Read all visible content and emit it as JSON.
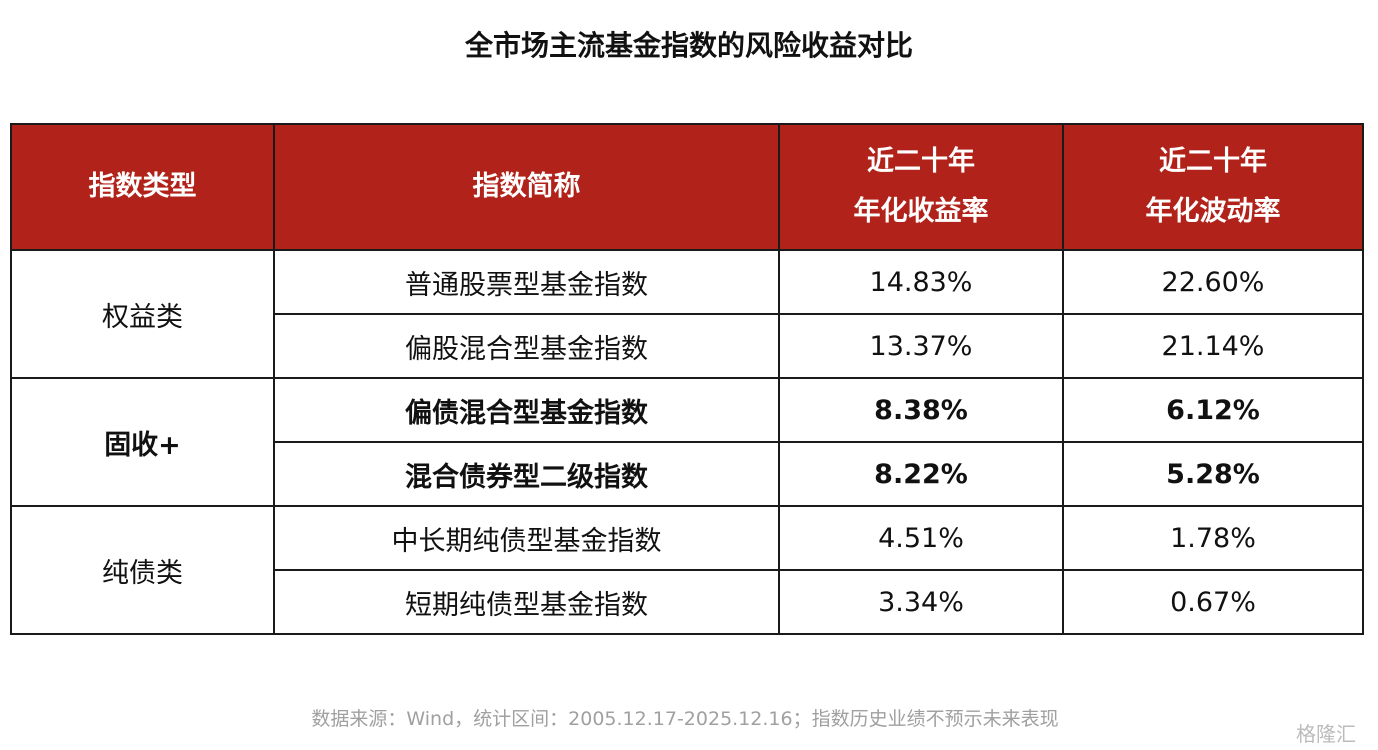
{
  "title": "全市场主流基金指数的风险收益对比",
  "table": {
    "header": [
      [
        "指数类型"
      ],
      [
        "指数简称"
      ],
      [
        "近二十年",
        "年化收益率"
      ],
      [
        "近二十年",
        "年化波动率"
      ]
    ],
    "groups": [
      {
        "label": "权益类",
        "rows": [
          [
            "普通股票型基金指数",
            "14.83%",
            "22.60%"
          ],
          [
            "偏股混合型基金指数",
            "13.37%",
            "21.14%"
          ]
        ]
      },
      {
        "label": "固收+",
        "rows": [
          [
            "偏债混合型基金指数",
            "8.38%",
            "6.12%"
          ],
          [
            "混合债券型二级指数",
            "8.22%",
            "5.28%"
          ]
        ]
      },
      {
        "label": "纯债类",
        "rows": [
          [
            "中长期纯债型基金指数",
            "4.51%",
            "1.78%"
          ],
          [
            "短期纯债型基金指数",
            "3.34%",
            "0.67%"
          ]
        ]
      }
    ]
  },
  "footer": "数据来源：Wind，统计区间：2005.12.17-2025.12.16；指数历史业绩不预示未来表现",
  "watermark": "格隆汇"
}
